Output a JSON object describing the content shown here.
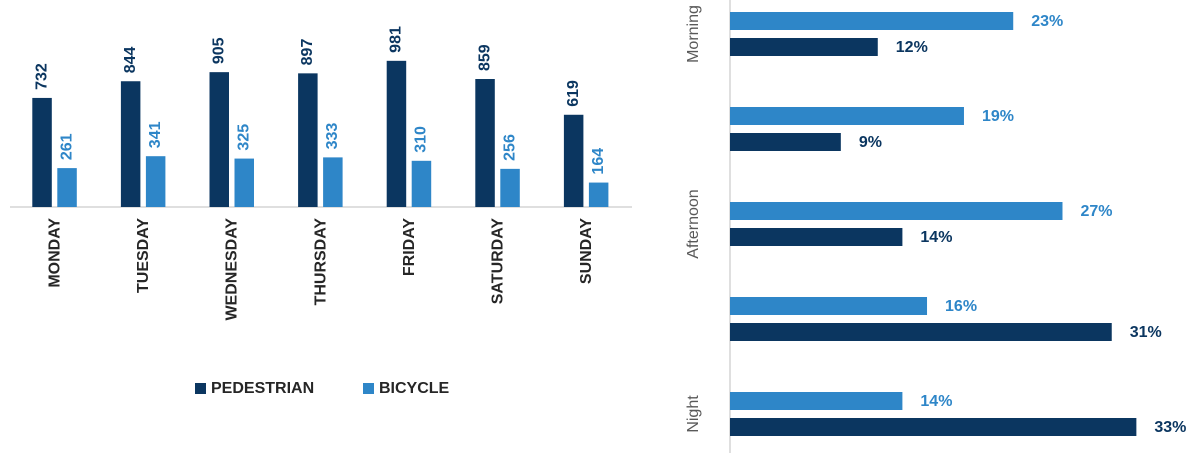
{
  "chart_data": [
    {
      "type": "bar",
      "categories": [
        "MONDAY",
        "TUESDAY",
        "WEDNESDAY",
        "THURSDAY",
        "FRIDAY",
        "SATURDAY",
        "SUNDAY"
      ],
      "series": [
        {
          "name": "PEDESTRIAN",
          "color": "#0b3660",
          "values": [
            732,
            844,
            905,
            897,
            981,
            859,
            619
          ]
        },
        {
          "name": "BICYCLE",
          "color": "#2e86c8",
          "values": [
            261,
            341,
            325,
            333,
            310,
            256,
            164
          ]
        }
      ],
      "ylim": [
        0,
        1000
      ],
      "legend": "bottom"
    },
    {
      "type": "hbar",
      "categories": [
        "Morning",
        null,
        "Afternoon",
        null,
        "Night"
      ],
      "series": [
        {
          "color": "#2e86c8",
          "values": [
            23,
            19,
            27,
            16,
            14
          ],
          "value_labels": [
            "23%",
            "19%",
            "27%",
            "16%",
            "14%"
          ]
        },
        {
          "color": "#0b3660",
          "values": [
            12,
            9,
            14,
            31,
            33
          ],
          "value_labels": [
            "12%",
            "9%",
            "14%",
            "31%",
            "33%"
          ]
        }
      ],
      "xlim": [
        0,
        35
      ]
    }
  ]
}
